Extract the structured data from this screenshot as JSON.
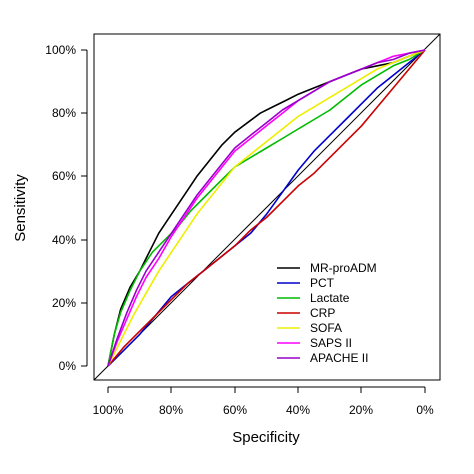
{
  "chart_data": {
    "type": "line",
    "title": "",
    "xlabel": "Specificity",
    "ylabel": "Sensitivity",
    "xlim": [
      1,
      0
    ],
    "ylim": [
      0,
      1
    ],
    "x_reversed": true,
    "x_ticks": [
      "100%",
      "80%",
      "60%",
      "40%",
      "20%",
      "0%"
    ],
    "y_ticks": [
      "0%",
      "20%",
      "40%",
      "60%",
      "80%",
      "100%"
    ],
    "grid": false,
    "legend_position": "bottom-right",
    "reference_line": {
      "from": [
        1,
        0
      ],
      "to": [
        0,
        1
      ],
      "color": "#000000"
    },
    "series": [
      {
        "name": "MR-proADM",
        "color": "#000000",
        "points": [
          [
            1,
            0
          ],
          [
            0.98,
            0.1
          ],
          [
            0.96,
            0.18
          ],
          [
            0.93,
            0.25
          ],
          [
            0.9,
            0.3
          ],
          [
            0.87,
            0.36
          ],
          [
            0.84,
            0.42
          ],
          [
            0.8,
            0.48
          ],
          [
            0.76,
            0.54
          ],
          [
            0.72,
            0.6
          ],
          [
            0.68,
            0.65
          ],
          [
            0.64,
            0.7
          ],
          [
            0.6,
            0.74
          ],
          [
            0.56,
            0.77
          ],
          [
            0.52,
            0.8
          ],
          [
            0.48,
            0.82
          ],
          [
            0.44,
            0.84
          ],
          [
            0.4,
            0.86
          ],
          [
            0.35,
            0.88
          ],
          [
            0.3,
            0.9
          ],
          [
            0.25,
            0.92
          ],
          [
            0.2,
            0.94
          ],
          [
            0.15,
            0.95
          ],
          [
            0.1,
            0.96
          ],
          [
            0.05,
            0.98
          ],
          [
            0,
            1
          ]
        ]
      },
      {
        "name": "PCT",
        "color": "#0000cc",
        "points": [
          [
            1,
            0
          ],
          [
            0.96,
            0.04
          ],
          [
            0.9,
            0.1
          ],
          [
            0.85,
            0.16
          ],
          [
            0.8,
            0.22
          ],
          [
            0.75,
            0.26
          ],
          [
            0.7,
            0.3
          ],
          [
            0.65,
            0.34
          ],
          [
            0.6,
            0.38
          ],
          [
            0.55,
            0.42
          ],
          [
            0.5,
            0.48
          ],
          [
            0.45,
            0.55
          ],
          [
            0.4,
            0.62
          ],
          [
            0.35,
            0.68
          ],
          [
            0.3,
            0.73
          ],
          [
            0.25,
            0.78
          ],
          [
            0.2,
            0.83
          ],
          [
            0.15,
            0.88
          ],
          [
            0.1,
            0.92
          ],
          [
            0.05,
            0.96
          ],
          [
            0,
            1
          ]
        ]
      },
      {
        "name": "Lactate",
        "color": "#00bb00",
        "points": [
          [
            1,
            0
          ],
          [
            0.98,
            0.1
          ],
          [
            0.96,
            0.17
          ],
          [
            0.93,
            0.24
          ],
          [
            0.9,
            0.3
          ],
          [
            0.86,
            0.36
          ],
          [
            0.82,
            0.4
          ],
          [
            0.78,
            0.44
          ],
          [
            0.74,
            0.49
          ],
          [
            0.7,
            0.53
          ],
          [
            0.65,
            0.58
          ],
          [
            0.6,
            0.63
          ],
          [
            0.55,
            0.66
          ],
          [
            0.5,
            0.69
          ],
          [
            0.45,
            0.72
          ],
          [
            0.4,
            0.75
          ],
          [
            0.35,
            0.78
          ],
          [
            0.3,
            0.81
          ],
          [
            0.25,
            0.85
          ],
          [
            0.2,
            0.89
          ],
          [
            0.15,
            0.92
          ],
          [
            0.1,
            0.95
          ],
          [
            0.05,
            0.97
          ],
          [
            0,
            1
          ]
        ]
      },
      {
        "name": "CRP",
        "color": "#cc0000",
        "points": [
          [
            1,
            0
          ],
          [
            0.95,
            0.06
          ],
          [
            0.9,
            0.11
          ],
          [
            0.85,
            0.16
          ],
          [
            0.8,
            0.21
          ],
          [
            0.75,
            0.26
          ],
          [
            0.7,
            0.3
          ],
          [
            0.65,
            0.34
          ],
          [
            0.6,
            0.38
          ],
          [
            0.55,
            0.43
          ],
          [
            0.5,
            0.47
          ],
          [
            0.45,
            0.52
          ],
          [
            0.4,
            0.57
          ],
          [
            0.35,
            0.61
          ],
          [
            0.3,
            0.66
          ],
          [
            0.25,
            0.71
          ],
          [
            0.2,
            0.76
          ],
          [
            0.15,
            0.82
          ],
          [
            0.1,
            0.88
          ],
          [
            0.05,
            0.94
          ],
          [
            0,
            1
          ]
        ]
      },
      {
        "name": "SOFA",
        "color": "#eeee00",
        "points": [
          [
            1,
            0
          ],
          [
            0.96,
            0.08
          ],
          [
            0.92,
            0.16
          ],
          [
            0.88,
            0.23
          ],
          [
            0.84,
            0.3
          ],
          [
            0.8,
            0.36
          ],
          [
            0.76,
            0.42
          ],
          [
            0.72,
            0.48
          ],
          [
            0.68,
            0.53
          ],
          [
            0.64,
            0.58
          ],
          [
            0.6,
            0.63
          ],
          [
            0.55,
            0.67
          ],
          [
            0.5,
            0.71
          ],
          [
            0.45,
            0.75
          ],
          [
            0.4,
            0.79
          ],
          [
            0.35,
            0.82
          ],
          [
            0.3,
            0.85
          ],
          [
            0.25,
            0.88
          ],
          [
            0.2,
            0.91
          ],
          [
            0.15,
            0.94
          ],
          [
            0.1,
            0.96
          ],
          [
            0.05,
            0.98
          ],
          [
            0,
            1
          ]
        ]
      },
      {
        "name": "SAPS II",
        "color": "#ff00ff",
        "points": [
          [
            1,
            0
          ],
          [
            0.97,
            0.08
          ],
          [
            0.94,
            0.15
          ],
          [
            0.91,
            0.22
          ],
          [
            0.88,
            0.28
          ],
          [
            0.84,
            0.34
          ],
          [
            0.8,
            0.41
          ],
          [
            0.76,
            0.47
          ],
          [
            0.72,
            0.53
          ],
          [
            0.68,
            0.58
          ],
          [
            0.64,
            0.63
          ],
          [
            0.6,
            0.68
          ],
          [
            0.55,
            0.72
          ],
          [
            0.5,
            0.76
          ],
          [
            0.45,
            0.8
          ],
          [
            0.4,
            0.84
          ],
          [
            0.35,
            0.87
          ],
          [
            0.3,
            0.9
          ],
          [
            0.25,
            0.92
          ],
          [
            0.2,
            0.94
          ],
          [
            0.15,
            0.96
          ],
          [
            0.1,
            0.98
          ],
          [
            0.05,
            0.99
          ],
          [
            0,
            1
          ]
        ]
      },
      {
        "name": "APACHE II",
        "color": "#9900cc",
        "points": [
          [
            1,
            0
          ],
          [
            0.97,
            0.09
          ],
          [
            0.94,
            0.17
          ],
          [
            0.91,
            0.24
          ],
          [
            0.88,
            0.3
          ],
          [
            0.84,
            0.36
          ],
          [
            0.8,
            0.42
          ],
          [
            0.76,
            0.48
          ],
          [
            0.72,
            0.54
          ],
          [
            0.68,
            0.59
          ],
          [
            0.64,
            0.64
          ],
          [
            0.6,
            0.69
          ],
          [
            0.55,
            0.73
          ],
          [
            0.5,
            0.77
          ],
          [
            0.45,
            0.81
          ],
          [
            0.4,
            0.84
          ],
          [
            0.35,
            0.87
          ],
          [
            0.3,
            0.9
          ],
          [
            0.25,
            0.92
          ],
          [
            0.2,
            0.94
          ],
          [
            0.15,
            0.96
          ],
          [
            0.1,
            0.97
          ],
          [
            0.05,
            0.99
          ],
          [
            0,
            1
          ]
        ]
      }
    ]
  }
}
